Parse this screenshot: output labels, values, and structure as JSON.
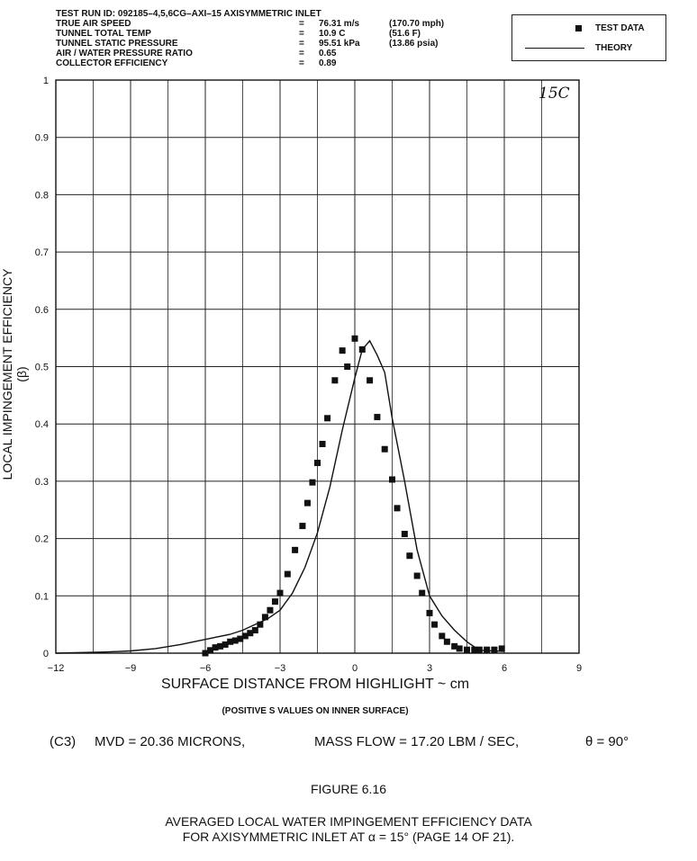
{
  "header": {
    "line1": "TEST RUN ID:  092185–4,5,6CG–AXI–15   AXISYMMETRIC INLET",
    "params": [
      {
        "label": "TRUE AIR SPEED",
        "eq": "=",
        "si": "76.31 m/s",
        "us": "(170.70 mph)"
      },
      {
        "label": "TUNNEL TOTAL TEMP",
        "eq": "=",
        "si": "10.9 C",
        "us": "(51.6 F)"
      },
      {
        "label": "TUNNEL STATIC PRESSURE",
        "eq": "=",
        "si": "95.51 kPa",
        "us": "(13.86 psia)"
      },
      {
        "label": "AIR / WATER PRESSURE RATIO",
        "eq": "=",
        "si": "0.65",
        "us": ""
      },
      {
        "label": "COLLECTOR EFFICIENCY",
        "eq": "=",
        "si": "0.89",
        "us": ""
      }
    ]
  },
  "legend": {
    "test_data": "TEST DATA",
    "theory": "THEORY"
  },
  "corner_label": "15C",
  "subnote": "(POSITIVE S VALUES ON INNER SURFACE)",
  "conditions": {
    "case": "(C3)",
    "mvd": "MVD = 20.36 MICRONS,",
    "mass_flow": "MASS FLOW = 17.20 LBM / SEC,",
    "theta": "θ  =  90°"
  },
  "figure_number": "FIGURE 6.16",
  "caption_line1": "AVERAGED LOCAL WATER IMPINGEMENT EFFICIENCY DATA",
  "caption_line2": "FOR AXISYMMETRIC INLET AT α = 15° (PAGE 14 OF 21).",
  "chart_data": {
    "type": "scatter",
    "title": "",
    "xlabel": "SURFACE DISTANCE FROM HIGHLIGHT ~ cm",
    "ylabel": "LOCAL IMPINGEMENT EFFICIENCY (β)",
    "xlim": [
      -12,
      9
    ],
    "ylim": [
      0,
      1
    ],
    "xticks": [
      -12,
      -9,
      -6,
      -3,
      0,
      3,
      6,
      9
    ],
    "xtick_labels": [
      "−12",
      "−9",
      "−6",
      "−3",
      "0",
      "3",
      "6",
      "9"
    ],
    "yticks": [
      0,
      0.1,
      0.2,
      0.3,
      0.4,
      0.5,
      0.6,
      0.7,
      0.8,
      0.9,
      1
    ],
    "ytick_labels": [
      "0",
      "0.1",
      "0.2",
      "0.3",
      "0.4",
      "0.5",
      "0.6",
      "0.7",
      "0.8",
      "0.9",
      "1"
    ],
    "grid": true,
    "legend_position": "top-right",
    "series": [
      {
        "name": "TEST DATA",
        "kind": "scatter",
        "x": [
          -6.0,
          -5.8,
          -5.6,
          -5.4,
          -5.2,
          -5.0,
          -4.8,
          -4.6,
          -4.4,
          -4.2,
          -4.0,
          -3.8,
          -3.6,
          -3.4,
          -3.2,
          -3.0,
          -2.7,
          -2.4,
          -2.1,
          -1.9,
          -1.7,
          -1.5,
          -1.3,
          -1.1,
          -0.8,
          -0.5,
          -0.3,
          0.0,
          0.3,
          0.6,
          0.9,
          1.2,
          1.5,
          1.7,
          2.0,
          2.2,
          2.5,
          2.7,
          3.0,
          3.2,
          3.5,
          3.7,
          4.0,
          4.2,
          4.5,
          4.8,
          5.0,
          5.3,
          5.6,
          5.9
        ],
        "y": [
          0.0,
          0.005,
          0.01,
          0.012,
          0.015,
          0.02,
          0.022,
          0.025,
          0.03,
          0.035,
          0.04,
          0.05,
          0.063,
          0.075,
          0.09,
          0.105,
          0.138,
          0.18,
          0.222,
          0.262,
          0.298,
          0.332,
          0.365,
          0.41,
          0.476,
          0.528,
          0.5,
          0.549,
          0.53,
          0.476,
          0.412,
          0.356,
          0.303,
          0.253,
          0.208,
          0.17,
          0.135,
          0.105,
          0.07,
          0.05,
          0.03,
          0.02,
          0.012,
          0.008,
          0.006,
          0.006,
          0.006,
          0.006,
          0.006,
          0.008
        ]
      },
      {
        "name": "THEORY",
        "kind": "line",
        "x": [
          -12,
          -10,
          -9,
          -8,
          -7,
          -6,
          -5,
          -4.5,
          -4,
          -3.5,
          -3,
          -2.5,
          -2,
          -1.5,
          -1,
          -0.5,
          0,
          0.3,
          0.6,
          0.9,
          1.2,
          1.5,
          2.0,
          2.5,
          3.0,
          3.5,
          4.0,
          4.5,
          5.0,
          6.0
        ],
        "y": [
          0.0,
          0.002,
          0.004,
          0.008,
          0.015,
          0.024,
          0.033,
          0.04,
          0.05,
          0.06,
          0.075,
          0.105,
          0.15,
          0.21,
          0.29,
          0.39,
          0.48,
          0.53,
          0.545,
          0.52,
          0.49,
          0.41,
          0.3,
          0.18,
          0.1,
          0.065,
          0.04,
          0.02,
          0.005,
          0.003
        ]
      }
    ]
  }
}
